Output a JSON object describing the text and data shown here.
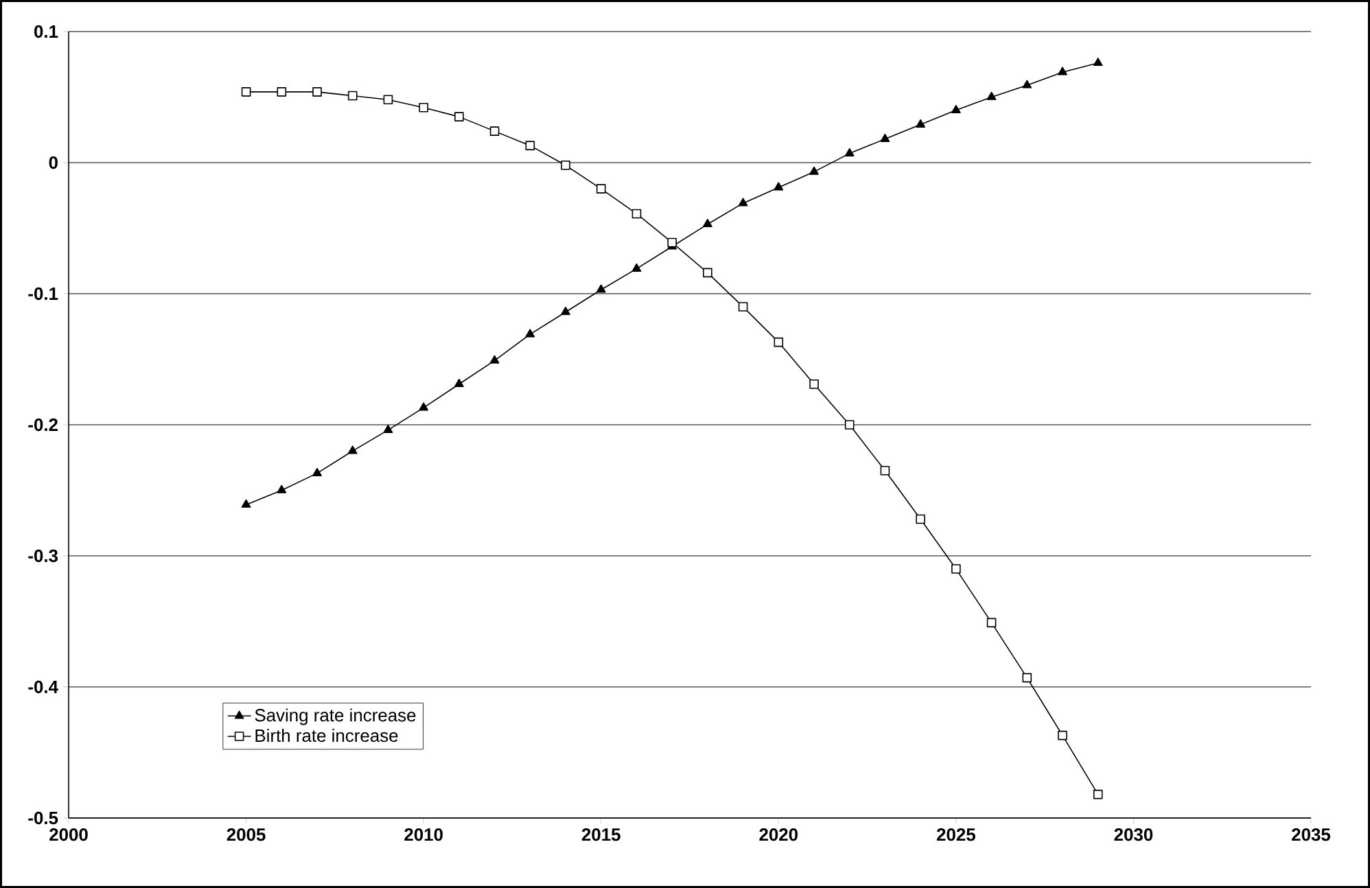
{
  "chart_data": {
    "type": "line",
    "x": [
      2005,
      2006,
      2007,
      2008,
      2009,
      2010,
      2011,
      2012,
      2013,
      2014,
      2015,
      2016,
      2017,
      2018,
      2019,
      2020,
      2021,
      2022,
      2023,
      2024,
      2025,
      2026,
      2027,
      2028,
      2029
    ],
    "series": [
      {
        "name": "Saving rate increase",
        "color": "#000000",
        "marker": "triangle",
        "values": [
          -0.261,
          -0.25,
          -0.237,
          -0.22,
          -0.204,
          -0.187,
          -0.169,
          -0.151,
          -0.131,
          -0.114,
          -0.097,
          -0.081,
          -0.064,
          -0.047,
          -0.031,
          -0.019,
          -0.007,
          0.007,
          0.018,
          0.029,
          0.04,
          0.05,
          0.059,
          0.069,
          0.076
        ]
      },
      {
        "name": "Birth rate increase",
        "color": "#000000",
        "marker": "square",
        "values": [
          0.054,
          0.054,
          0.054,
          0.051,
          0.048,
          0.042,
          0.035,
          0.024,
          0.013,
          -0.002,
          -0.02,
          -0.039,
          -0.061,
          -0.084,
          -0.11,
          -0.137,
          -0.169,
          -0.2,
          -0.235,
          -0.272,
          -0.31,
          -0.351,
          -0.393,
          -0.437,
          -0.482
        ]
      }
    ],
    "xlim": [
      2000,
      2035
    ],
    "xticks": [
      2000,
      2005,
      2010,
      2015,
      2020,
      2025,
      2030,
      2035
    ],
    "ylim": [
      -0.5,
      0.1
    ],
    "yticks": [
      -0.5,
      -0.4,
      -0.3,
      -0.2,
      -0.1,
      0,
      0.1
    ],
    "grid": "y",
    "legend": "bottom left",
    "line_style": "solid"
  }
}
